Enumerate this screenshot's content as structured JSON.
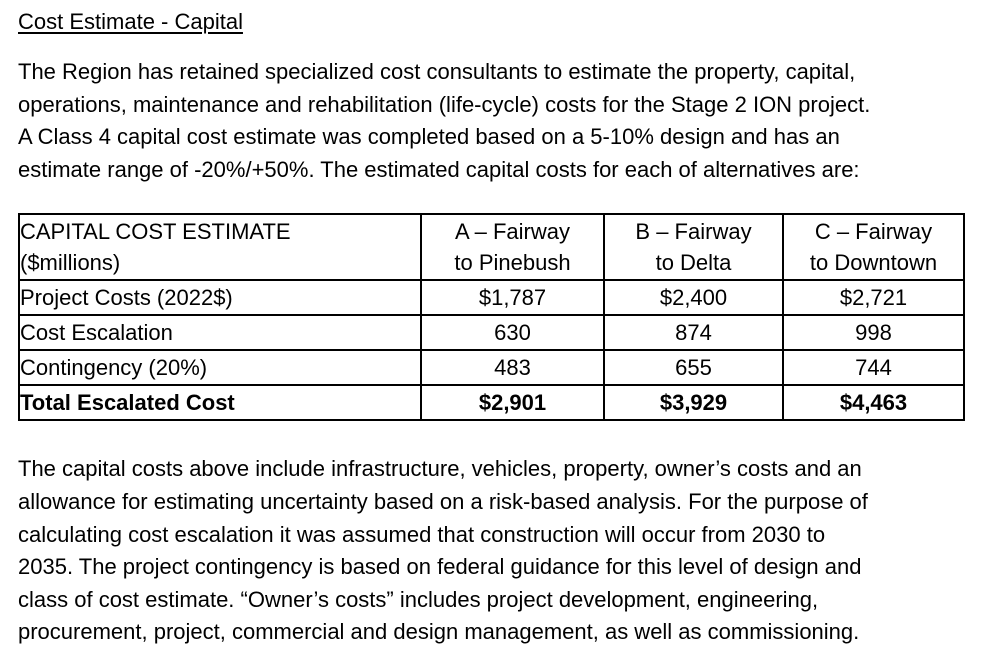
{
  "page": {
    "title": "Cost Estimate - Capital",
    "intro_lines": [
      "The Region has retained specialized cost consultants to estimate the property, capital,",
      "operations, maintenance and rehabilitation (life-cycle) costs for the Stage 2 ION project.",
      "A Class 4 capital cost estimate was completed based on a 5-10% design and has an",
      "estimate range of -20%/+50%. The estimated capital costs for each of alternatives are:"
    ],
    "closing_lines": [
      "The capital costs above include infrastructure, vehicles, property, owner’s costs and an",
      "allowance for estimating uncertainty based on a risk-based analysis. For the purpose of",
      "calculating cost escalation it was assumed that construction will occur from 2030 to",
      "2035. The project contingency is based on federal guidance for this level of design and",
      "class of cost estimate. “Owner’s costs” includes project development, engineering,",
      "procurement, project, commercial and design management, as well as commissioning."
    ]
  },
  "table": {
    "header": {
      "label_line1": "CAPITAL COST ESTIMATE",
      "label_line2": "($millions)",
      "columns": [
        {
          "line1": "A – Fairway",
          "line2": "to Pinebush"
        },
        {
          "line1": "B – Fairway",
          "line2": "to Delta"
        },
        {
          "line1": "C – Fairway",
          "line2": "to Downtown"
        }
      ]
    },
    "rows": [
      {
        "label": "Project Costs (2022$)",
        "values": [
          "$1,787",
          "$2,400",
          "$2,721"
        ]
      },
      {
        "label": "Cost Escalation",
        "values": [
          "630",
          "874",
          "998"
        ]
      },
      {
        "label": "Contingency (20%)",
        "values": [
          "483",
          "655",
          "744"
        ]
      },
      {
        "label": "Total Escalated Cost",
        "values": [
          "$2,901",
          "$3,929",
          "$4,463"
        ]
      }
    ]
  }
}
